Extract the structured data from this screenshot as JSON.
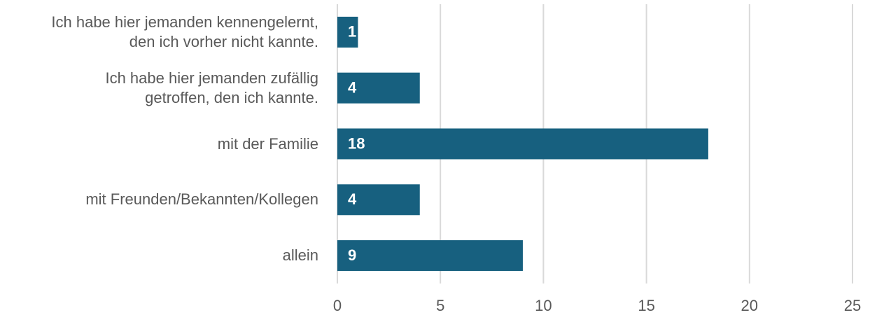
{
  "chart_data": {
    "type": "bar",
    "orientation": "horizontal",
    "categories": [
      "Ich habe hier jemanden kennengelernt,\nden ich vorher nicht kannte.",
      "Ich habe hier jemanden zufällig\ngetroffen, den ich kannte.",
      "mit der Familie",
      "mit Freunden/Bekannten/Kollegen",
      "allein"
    ],
    "values": [
      1,
      4,
      18,
      4,
      9
    ],
    "color": "#17607f",
    "xlim": [
      0,
      25
    ],
    "xticks": [
      0,
      5,
      10,
      15,
      20,
      25
    ],
    "grid": true
  }
}
